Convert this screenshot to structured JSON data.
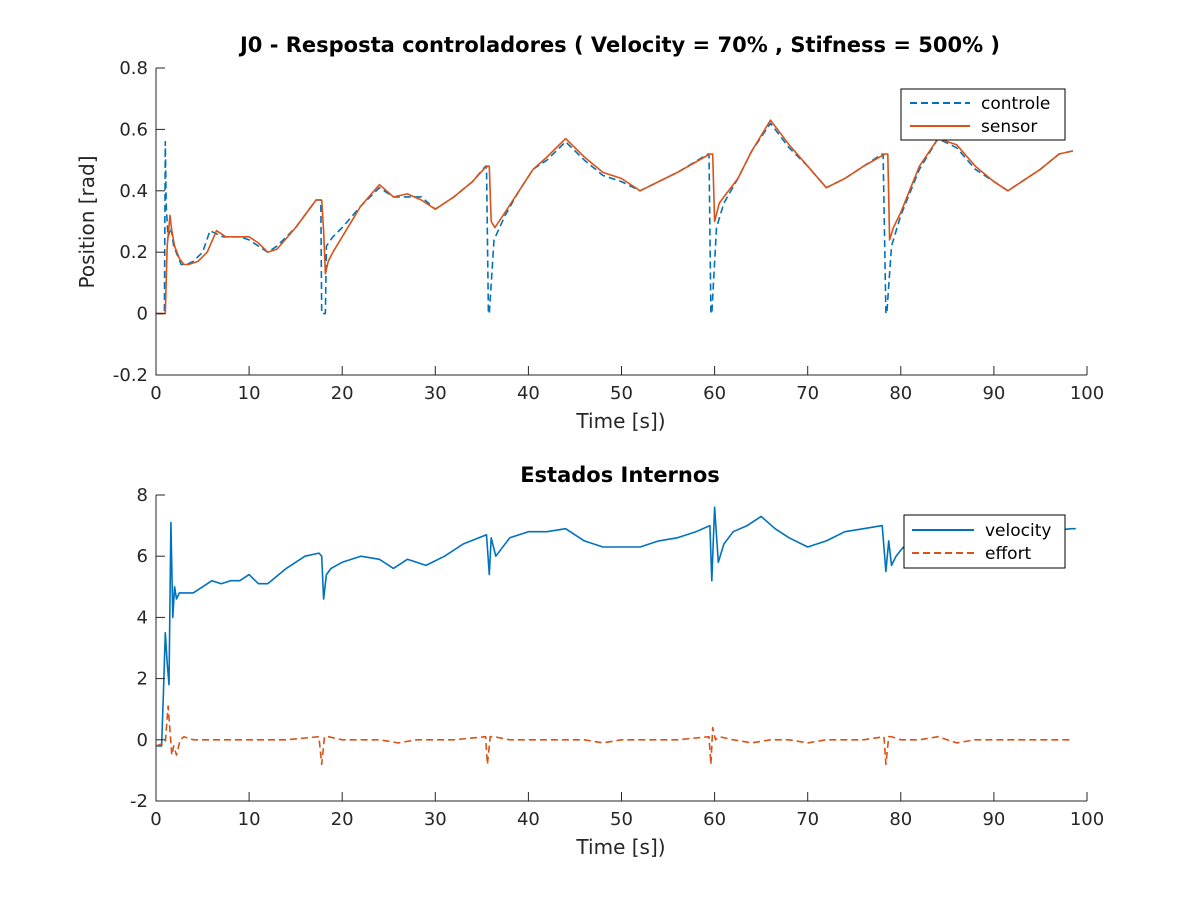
{
  "chart_data": [
    {
      "type": "line",
      "title": "J0 - Resposta controladores ( Velocity = 70% , Stifness = 500% )",
      "xlabel": "Time [s])",
      "ylabel": "Position [rad]",
      "xlim": [
        0,
        100
      ],
      "ylim": [
        -0.2,
        0.8
      ],
      "xticks": [
        "0",
        "10",
        "20",
        "30",
        "40",
        "50",
        "60",
        "70",
        "80",
        "90",
        "100"
      ],
      "yticks": [
        "-0.2",
        "0",
        "0.2",
        "0.4",
        "0.6",
        "0.8"
      ],
      "grid": false,
      "legend_position": "top-right",
      "series": [
        {
          "name": "controle",
          "color": "#0072BD",
          "style": "dashed",
          "x": [
            0,
            0.9,
            1.0,
            1.1,
            1.3,
            1.6,
            1.9,
            2.3,
            2.7,
            3.3,
            4.0,
            5.0,
            5.8,
            6.5,
            7.2,
            8.0,
            9.0,
            10.0,
            11.0,
            12.0,
            13.0,
            15.0,
            17.2,
            17.7,
            17.8,
            18.2,
            18.3,
            19.0,
            20.0,
            22.0,
            24.0,
            25.5,
            27.0,
            28.5,
            30.0,
            32.0,
            34.0,
            35.4,
            35.5,
            35.7,
            35.8,
            36.3,
            37.5,
            39.0,
            40.5,
            42.0,
            44.0,
            46.0,
            48.0,
            50.0,
            52.0,
            54.0,
            56.0,
            59.3,
            59.4,
            59.6,
            59.7,
            60.2,
            61.0,
            62.5,
            64.0,
            66.0,
            68.0,
            70.0,
            72.0,
            74.0,
            76.0,
            78.0,
            78.1,
            78.4,
            78.5,
            79.0,
            80.0,
            82.0,
            84.0,
            86.0,
            88.0,
            90.0,
            91.5,
            93.0,
            95.0,
            97.0,
            98.5
          ],
          "y": [
            0.0,
            0.0,
            0.56,
            0.35,
            0.25,
            0.28,
            0.22,
            0.19,
            0.16,
            0.16,
            0.17,
            0.2,
            0.27,
            0.26,
            0.25,
            0.25,
            0.25,
            0.24,
            0.22,
            0.2,
            0.22,
            0.28,
            0.37,
            0.37,
            0.0,
            0.0,
            0.22,
            0.25,
            0.28,
            0.35,
            0.41,
            0.38,
            0.38,
            0.38,
            0.34,
            0.38,
            0.43,
            0.48,
            0.48,
            0.0,
            0.0,
            0.24,
            0.32,
            0.4,
            0.47,
            0.5,
            0.56,
            0.5,
            0.45,
            0.43,
            0.4,
            0.43,
            0.46,
            0.52,
            0.52,
            0.0,
            0.0,
            0.28,
            0.36,
            0.44,
            0.53,
            0.62,
            0.54,
            0.48,
            0.41,
            0.44,
            0.48,
            0.52,
            0.52,
            0.0,
            0.0,
            0.22,
            0.32,
            0.47,
            0.57,
            0.54,
            0.47,
            0.43,
            0.4,
            0.43,
            0.47,
            0.52,
            0.53
          ]
        },
        {
          "name": "sensor",
          "color": "#D95319",
          "style": "solid",
          "x": [
            0,
            1.0,
            1.2,
            1.5,
            1.7,
            2.0,
            2.5,
            3.0,
            3.5,
            4.5,
            5.5,
            6.5,
            7.5,
            9.0,
            10.0,
            11.0,
            12.0,
            13.0,
            15.0,
            17.2,
            17.8,
            18.0,
            18.2,
            18.5,
            19.0,
            20.0,
            22.0,
            24.0,
            25.5,
            27.0,
            28.5,
            30.0,
            32.0,
            34.0,
            35.5,
            35.8,
            36.0,
            36.4,
            37.5,
            39.0,
            40.5,
            42.0,
            44.0,
            46.0,
            48.0,
            50.0,
            52.0,
            54.0,
            56.0,
            59.5,
            59.8,
            60.0,
            60.5,
            61.0,
            62.5,
            64.0,
            66.0,
            68.0,
            70.0,
            72.0,
            74.0,
            76.0,
            78.3,
            78.6,
            78.8,
            79.2,
            80.0,
            82.0,
            84.0,
            86.0,
            88.0,
            90.0,
            91.5,
            93.0,
            95.0,
            97.0,
            98.5
          ],
          "y": [
            0.0,
            0.0,
            0.22,
            0.32,
            0.27,
            0.22,
            0.18,
            0.16,
            0.16,
            0.17,
            0.2,
            0.27,
            0.25,
            0.25,
            0.25,
            0.23,
            0.2,
            0.21,
            0.28,
            0.37,
            0.37,
            0.27,
            0.13,
            0.17,
            0.2,
            0.25,
            0.35,
            0.42,
            0.38,
            0.39,
            0.37,
            0.34,
            0.38,
            0.43,
            0.48,
            0.48,
            0.3,
            0.28,
            0.33,
            0.4,
            0.47,
            0.51,
            0.57,
            0.51,
            0.46,
            0.44,
            0.4,
            0.43,
            0.46,
            0.52,
            0.52,
            0.3,
            0.36,
            0.38,
            0.44,
            0.53,
            0.63,
            0.55,
            0.48,
            0.41,
            0.44,
            0.48,
            0.52,
            0.52,
            0.24,
            0.28,
            0.33,
            0.48,
            0.57,
            0.55,
            0.48,
            0.43,
            0.4,
            0.43,
            0.47,
            0.52,
            0.53
          ]
        }
      ]
    },
    {
      "type": "line",
      "title": "Estados Internos",
      "xlabel": "Time [s])",
      "ylabel": "",
      "xlim": [
        0,
        100
      ],
      "ylim": [
        -2,
        8
      ],
      "xticks": [
        "0",
        "10",
        "20",
        "30",
        "40",
        "50",
        "60",
        "70",
        "80",
        "90",
        "100"
      ],
      "yticks": [
        "-2",
        "0",
        "2",
        "4",
        "6",
        "8"
      ],
      "grid": false,
      "legend_position": "top-right",
      "series": [
        {
          "name": "velocity",
          "color": "#0072BD",
          "style": "solid",
          "x": [
            0,
            0.6,
            0.8,
            1.0,
            1.2,
            1.4,
            1.6,
            1.8,
            2.0,
            2.2,
            2.5,
            3.0,
            4.0,
            5.0,
            6.0,
            7.0,
            8.0,
            9.0,
            10.0,
            11.0,
            12.0,
            14.0,
            16.0,
            17.5,
            17.8,
            18.0,
            18.3,
            18.8,
            20.0,
            22.0,
            24.0,
            25.5,
            27.0,
            29.0,
            31.0,
            33.0,
            35.5,
            35.8,
            36.0,
            36.5,
            38.0,
            40.0,
            42.0,
            44.0,
            46.0,
            48.0,
            50.0,
            52.0,
            54.0,
            56.0,
            58.0,
            59.5,
            59.7,
            60.0,
            60.4,
            61.0,
            62.0,
            63.5,
            65.0,
            66.5,
            68.0,
            70.0,
            72.0,
            74.0,
            76.0,
            78.0,
            78.4,
            78.7,
            79.0,
            79.5,
            80.0,
            80.3,
            98.3,
            98.8
          ],
          "y": [
            -0.2,
            -0.2,
            1.5,
            3.5,
            2.5,
            1.8,
            7.1,
            4.0,
            5.0,
            4.6,
            4.8,
            4.8,
            4.8,
            5.0,
            5.2,
            5.1,
            5.2,
            5.2,
            5.4,
            5.1,
            5.1,
            5.6,
            6.0,
            6.1,
            6.0,
            4.6,
            5.4,
            5.6,
            5.8,
            6.0,
            5.9,
            5.6,
            5.9,
            5.7,
            6.0,
            6.4,
            6.7,
            5.4,
            6.6,
            6.0,
            6.6,
            6.8,
            6.8,
            6.9,
            6.5,
            6.3,
            6.3,
            6.3,
            6.5,
            6.6,
            6.8,
            7.0,
            5.2,
            7.6,
            5.8,
            6.4,
            6.8,
            7.0,
            7.3,
            6.9,
            6.6,
            6.3,
            6.5,
            6.8,
            6.9,
            7.0,
            5.5,
            6.5,
            5.7,
            6.0,
            6.2,
            6.3,
            6.9,
            6.9
          ]
        },
        {
          "name": "effort",
          "color": "#D95319",
          "style": "dashed",
          "x": [
            0,
            1.0,
            1.3,
            1.5,
            1.7,
            1.9,
            2.2,
            2.6,
            3.0,
            4.0,
            6.0,
            8.0,
            10.0,
            12.0,
            14.0,
            17.5,
            17.8,
            18.1,
            18.5,
            20.0,
            22.0,
            24.0,
            26.0,
            28.0,
            30.0,
            32.0,
            35.4,
            35.6,
            35.9,
            36.3,
            38.0,
            40.0,
            42.0,
            44.0,
            46.0,
            48.0,
            50.0,
            52.0,
            54.0,
            56.0,
            59.4,
            59.6,
            59.8,
            60.1,
            60.5,
            62.0,
            64.0,
            66.0,
            68.0,
            70.0,
            72.0,
            74.0,
            76.0,
            78.2,
            78.4,
            78.7,
            79.0,
            80.0,
            82.0,
            84.0,
            86.0,
            88.0,
            90.0,
            92.0,
            94.0,
            96.0,
            98.5
          ],
          "y": [
            -0.2,
            -0.1,
            1.1,
            0.3,
            -0.5,
            -0.2,
            -0.5,
            0.0,
            0.1,
            0.0,
            0.0,
            0.0,
            0.0,
            0.0,
            0.0,
            0.1,
            -0.8,
            0.1,
            0.1,
            0.0,
            0.0,
            0.0,
            -0.1,
            0.0,
            0.0,
            0.0,
            0.1,
            -0.8,
            0.1,
            0.1,
            0.0,
            0.0,
            0.0,
            0.0,
            0.0,
            -0.1,
            0.0,
            0.0,
            0.0,
            0.0,
            0.1,
            -0.8,
            0.4,
            0.0,
            0.1,
            0.0,
            -0.1,
            0.0,
            0.0,
            -0.1,
            0.0,
            0.0,
            0.0,
            0.1,
            -0.8,
            0.1,
            0.1,
            0.0,
            0.0,
            0.1,
            -0.1,
            0.0,
            0.0,
            0.0,
            0.0,
            0.0,
            0.0
          ]
        }
      ]
    }
  ]
}
